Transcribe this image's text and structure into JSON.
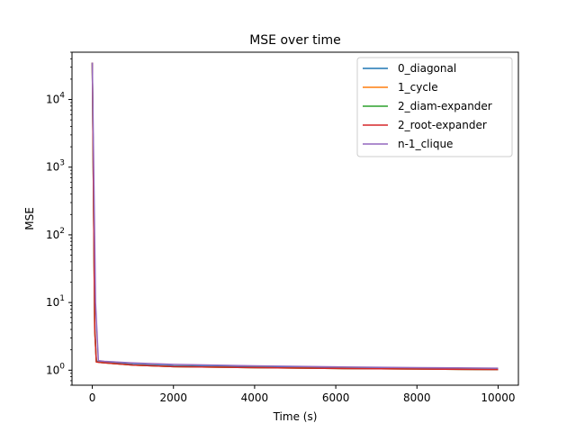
{
  "chart_data": {
    "type": "line",
    "title": "MSE over time",
    "xlabel": "Time (s)",
    "ylabel": "MSE",
    "xscale": "linear",
    "yscale": "log",
    "xlim": [
      -500,
      10500
    ],
    "ylim": [
      0.6,
      50000
    ],
    "xticks": [
      0,
      2000,
      4000,
      6000,
      8000,
      10000
    ],
    "xtick_labels": [
      "0",
      "2000",
      "4000",
      "6000",
      "8000",
      "10000"
    ],
    "yticks": [
      1,
      10,
      100,
      1000,
      10000
    ],
    "ytick_labels": [
      {
        "base": "10",
        "exp": "0"
      },
      {
        "base": "10",
        "exp": "1"
      },
      {
        "base": "10",
        "exp": "2"
      },
      {
        "base": "10",
        "exp": "3"
      },
      {
        "base": "10",
        "exp": "4"
      }
    ],
    "grid": false,
    "legend_position": "top-right",
    "series": [
      {
        "name": "0_diagonal",
        "color": "#1f77b4",
        "x": [
          0,
          60,
          100,
          200,
          1000,
          2000,
          4000,
          6000,
          8000,
          10000
        ],
        "y": [
          35000,
          5,
          1.36,
          1.33,
          1.22,
          1.16,
          1.12,
          1.09,
          1.07,
          1.05
        ]
      },
      {
        "name": "1_cycle",
        "color": "#ff7f0e",
        "x": [
          0,
          60,
          100,
          200,
          1000,
          2000,
          4000,
          6000,
          8000,
          10000
        ],
        "y": [
          35000,
          4,
          1.33,
          1.3,
          1.19,
          1.13,
          1.09,
          1.06,
          1.04,
          1.02
        ]
      },
      {
        "name": "2_diam-expander",
        "color": "#2ca02c",
        "x": [
          0,
          60,
          100,
          200,
          1000,
          2000,
          4000,
          6000,
          8000,
          10000
        ],
        "y": [
          35000,
          4,
          1.33,
          1.3,
          1.19,
          1.13,
          1.09,
          1.06,
          1.04,
          1.02
        ]
      },
      {
        "name": "2_root-expander",
        "color": "#d62728",
        "x": [
          0,
          60,
          100,
          200,
          1000,
          2000,
          4000,
          6000,
          8000,
          10000
        ],
        "y": [
          35000,
          4,
          1.32,
          1.3,
          1.19,
          1.13,
          1.09,
          1.06,
          1.04,
          1.02
        ]
      },
      {
        "name": "n-1_clique",
        "color": "#9467bd",
        "x": [
          0,
          80,
          150,
          300,
          1000,
          2000,
          4000,
          6000,
          8000,
          10000
        ],
        "y": [
          35000,
          10,
          1.38,
          1.35,
          1.28,
          1.22,
          1.16,
          1.12,
          1.09,
          1.07
        ]
      }
    ]
  }
}
